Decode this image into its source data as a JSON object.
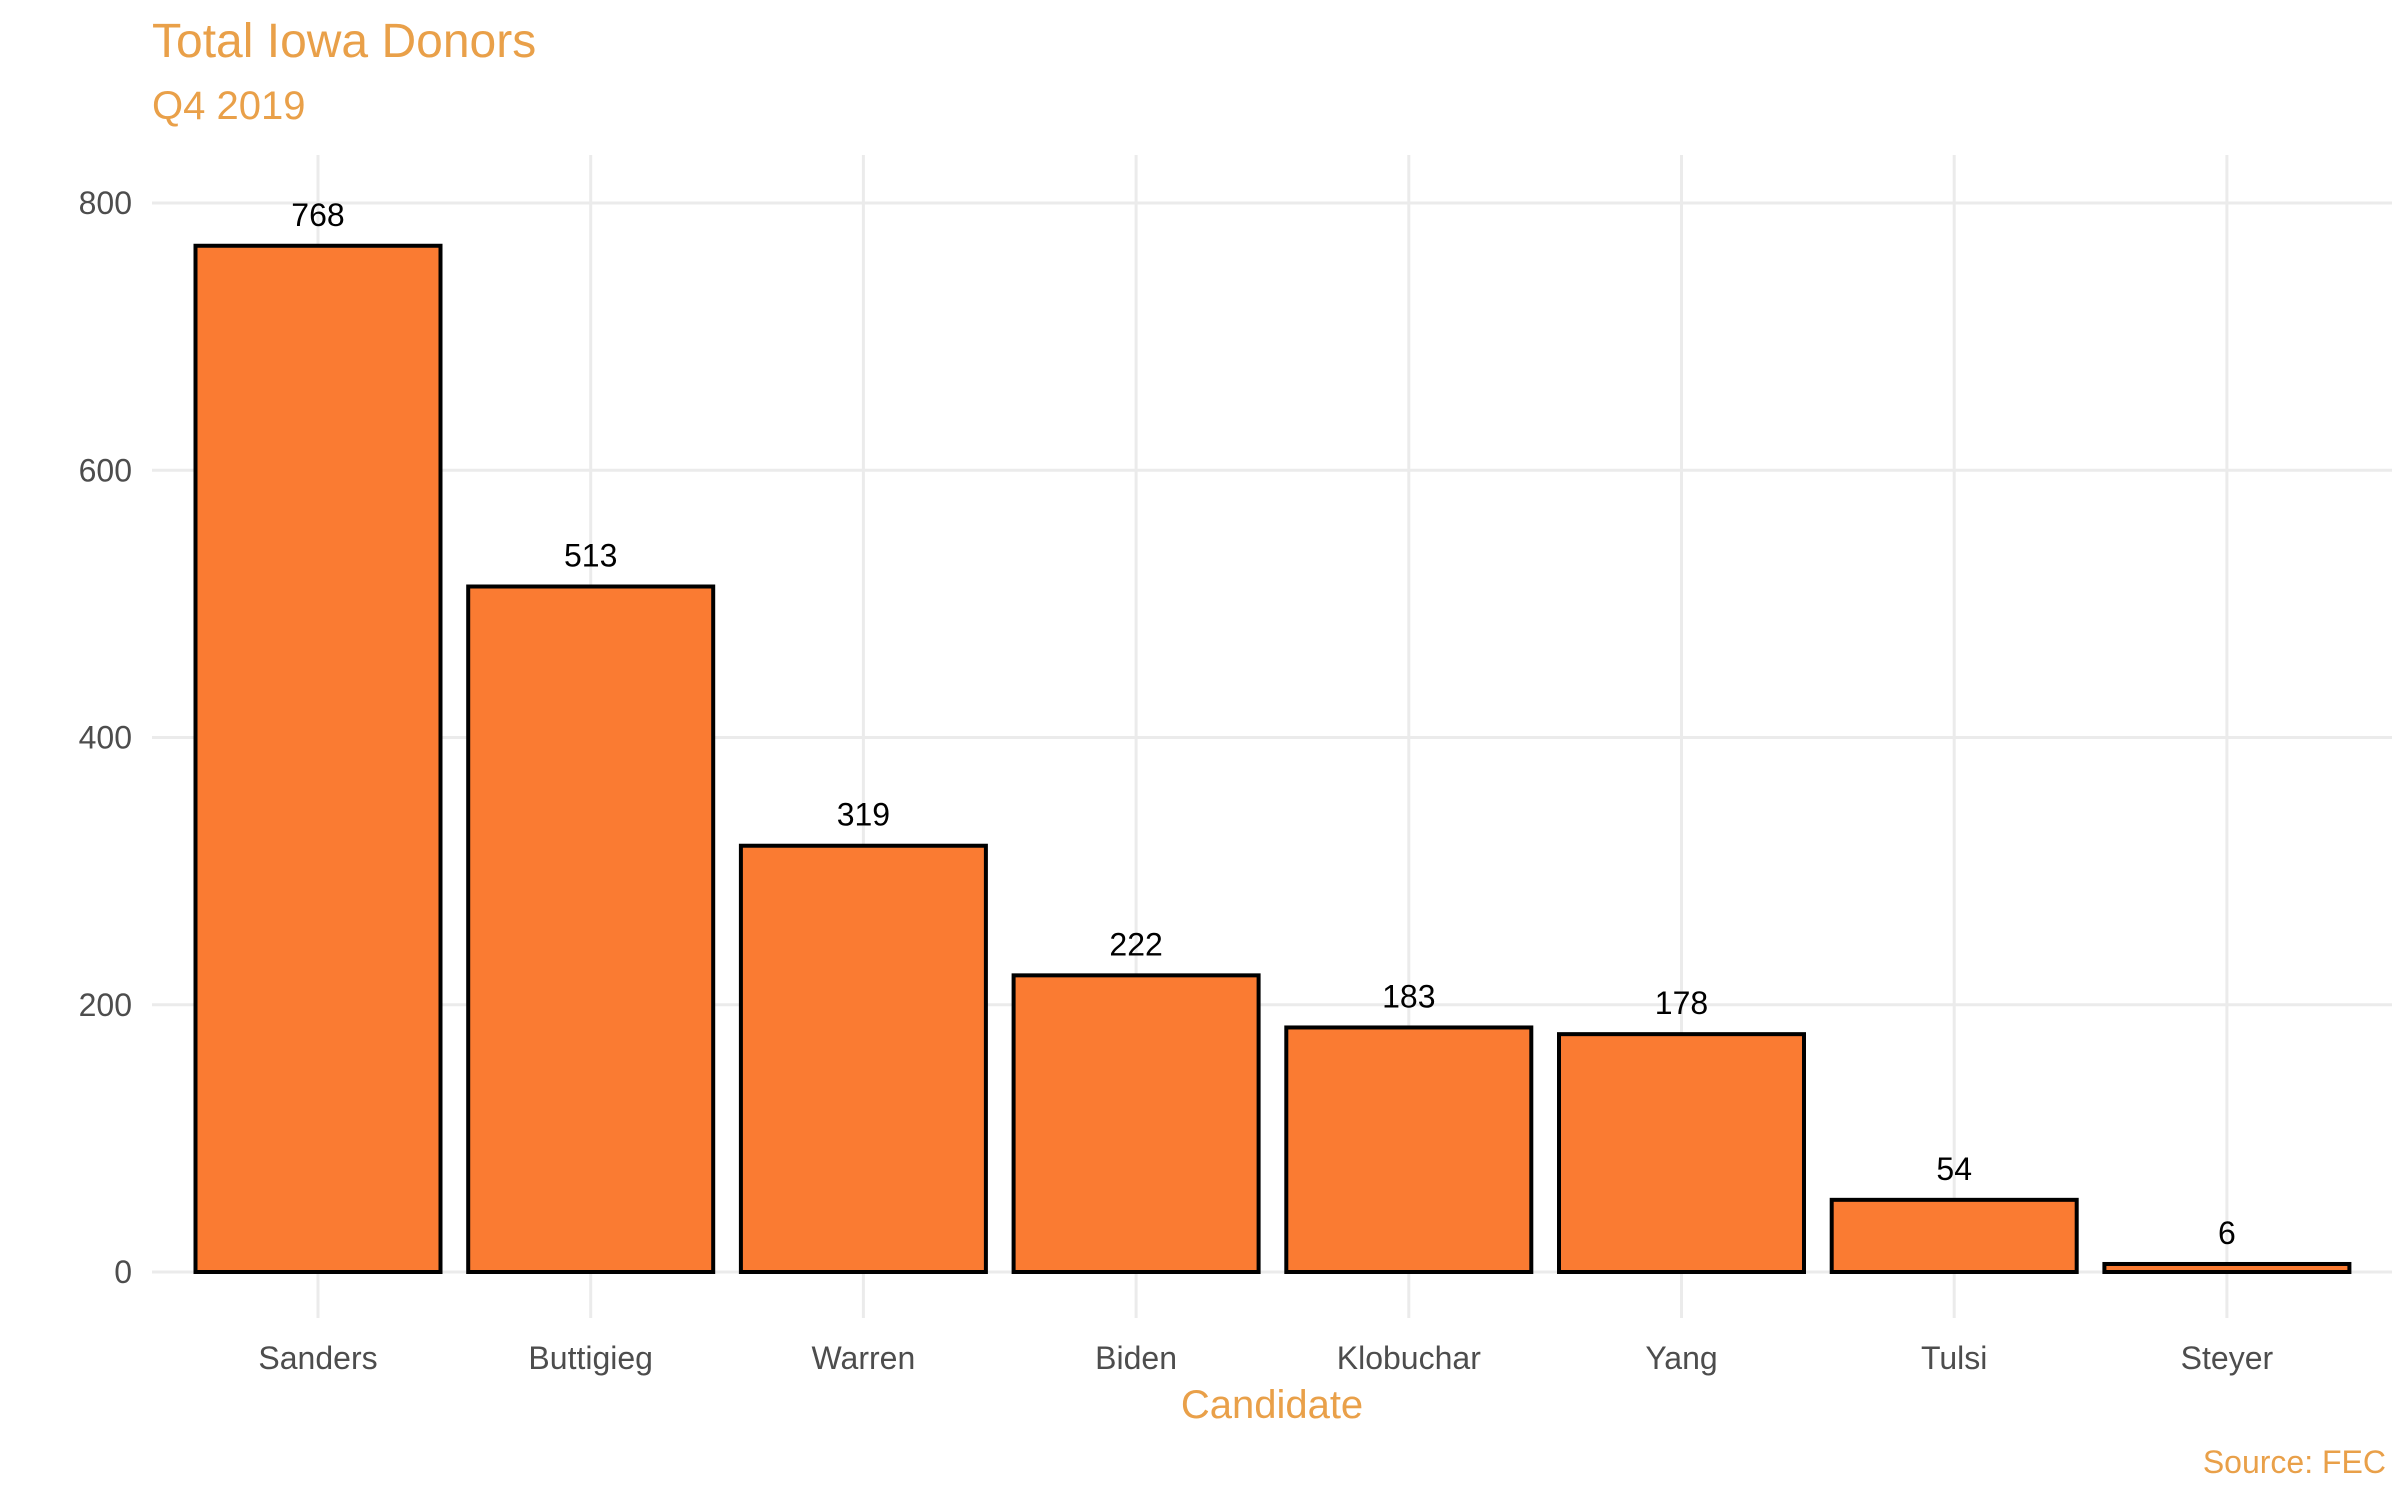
{
  "chart_data": {
    "type": "bar",
    "title": "Total Iowa Donors",
    "subtitle": "Q4 2019",
    "caption": "Source: FEC",
    "xlabel": "Candidate",
    "ylabel": "",
    "categories": [
      "Sanders",
      "Buttigieg",
      "Warren",
      "Biden",
      "Klobuchar",
      "Yang",
      "Tulsi",
      "Steyer"
    ],
    "values": [
      768,
      513,
      319,
      222,
      183,
      178,
      54,
      6
    ],
    "data_labels": [
      "768",
      "513",
      "319",
      "222",
      "183",
      "178",
      "54",
      "6"
    ],
    "ylim": [
      0,
      800
    ],
    "yticks": [
      0,
      200,
      400,
      600,
      800
    ],
    "ytick_labels": [
      "0",
      "200",
      "400",
      "600",
      "800"
    ],
    "grid": true,
    "legend": "none",
    "colors": {
      "bar_fill": "#FA7B32",
      "bar_stroke": "#000000",
      "title": "#E9A049",
      "grid": "#EBEBEB",
      "tick_text": "#4D4D4D"
    }
  }
}
